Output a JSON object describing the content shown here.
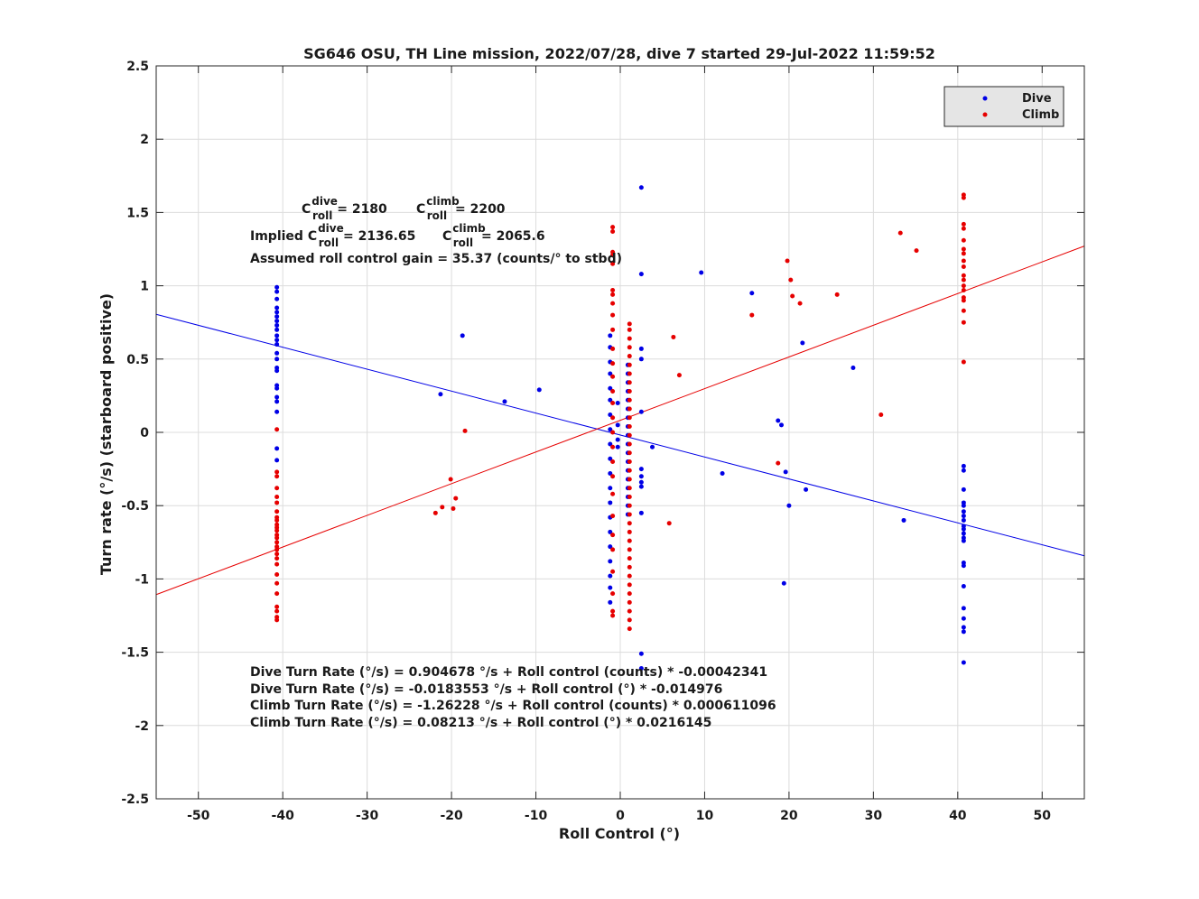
{
  "chart_data": {
    "type": "scatter",
    "title": "SG646 OSU, TH Line mission, 2022/07/28, dive 7 started 29-Jul-2022 11:59:52",
    "xlabel": "Roll Control (°)",
    "ylabel": "Turn rate (°/s) (starboard positive)",
    "xlim": [
      -55,
      55
    ],
    "ylim": [
      -2.5,
      2.5
    ],
    "xticks": [
      -50,
      -40,
      -30,
      -20,
      -10,
      0,
      10,
      20,
      30,
      40,
      50
    ],
    "yticks": [
      -2.5,
      -2,
      -1.5,
      -1,
      -0.5,
      0,
      0.5,
      1,
      1.5,
      2,
      2.5
    ],
    "xtick_labels": [
      "-50",
      "-40",
      "-30",
      "-20",
      "-10",
      "0",
      "10",
      "20",
      "30",
      "40",
      "50"
    ],
    "ytick_labels": [
      "-2.5",
      "-2",
      "-1.5",
      "-1",
      "-0.5",
      "0",
      "0.5",
      "1",
      "1.5",
      "2",
      "2.5"
    ],
    "grid": true,
    "legend_position": "top-right",
    "series": [
      {
        "name": "Dive",
        "color": "#0000e6",
        "points": [
          [
            -40.7,
            0.99
          ],
          [
            -40.7,
            0.96
          ],
          [
            -40.7,
            0.91
          ],
          [
            -40.7,
            0.85
          ],
          [
            -40.7,
            0.82
          ],
          [
            -40.7,
            0.79
          ],
          [
            -40.7,
            0.76
          ],
          [
            -40.7,
            0.73
          ],
          [
            -40.7,
            0.7
          ],
          [
            -40.7,
            0.66
          ],
          [
            -40.7,
            0.63
          ],
          [
            -40.7,
            0.6
          ],
          [
            -40.7,
            0.54
          ],
          [
            -40.7,
            0.5
          ],
          [
            -40.7,
            0.44
          ],
          [
            -40.7,
            0.42
          ],
          [
            -40.7,
            0.32
          ],
          [
            -40.7,
            0.3
          ],
          [
            -40.7,
            0.24
          ],
          [
            -40.7,
            0.21
          ],
          [
            -40.7,
            0.14
          ],
          [
            -40.7,
            -0.11
          ],
          [
            -40.7,
            -0.19
          ],
          [
            -21.3,
            0.26
          ],
          [
            -18.7,
            0.66
          ],
          [
            -13.7,
            0.21
          ],
          [
            -9.6,
            0.29
          ],
          [
            -1.2,
            0.66
          ],
          [
            -1.2,
            0.58
          ],
          [
            -1.2,
            0.48
          ],
          [
            -1.2,
            0.4
          ],
          [
            -1.2,
            0.3
          ],
          [
            -1.2,
            0.22
          ],
          [
            -1.2,
            0.12
          ],
          [
            -1.2,
            0.02
          ],
          [
            -1.2,
            -0.08
          ],
          [
            -1.2,
            -0.18
          ],
          [
            -1.2,
            -0.28
          ],
          [
            -1.2,
            -0.38
          ],
          [
            -1.2,
            -0.48
          ],
          [
            -1.2,
            -0.58
          ],
          [
            -1.2,
            -0.68
          ],
          [
            -1.2,
            -0.78
          ],
          [
            -1.2,
            -0.88
          ],
          [
            -1.2,
            -0.98
          ],
          [
            -1.2,
            -1.06
          ],
          [
            -1.2,
            -1.16
          ],
          [
            -0.3,
            0.2
          ],
          [
            -0.3,
            0.05
          ],
          [
            -0.3,
            -0.05
          ],
          [
            -0.3,
            -0.1
          ],
          [
            0.9,
            0.46
          ],
          [
            0.9,
            0.4
          ],
          [
            0.9,
            0.34
          ],
          [
            0.9,
            0.28
          ],
          [
            0.9,
            0.22
          ],
          [
            0.9,
            0.16
          ],
          [
            0.9,
            0.1
          ],
          [
            0.9,
            0.04
          ],
          [
            0.9,
            -0.02
          ],
          [
            0.9,
            -0.08
          ],
          [
            0.9,
            -0.14
          ],
          [
            0.9,
            -0.2
          ],
          [
            0.9,
            -0.26
          ],
          [
            0.9,
            -0.32
          ],
          [
            0.9,
            -0.38
          ],
          [
            0.9,
            -0.44
          ],
          [
            0.9,
            -0.5
          ],
          [
            0.9,
            -0.56
          ],
          [
            2.5,
            1.67
          ],
          [
            2.5,
            1.08
          ],
          [
            2.5,
            0.57
          ],
          [
            2.5,
            0.5
          ],
          [
            2.5,
            0.14
          ],
          [
            2.5,
            -0.25
          ],
          [
            2.5,
            -0.3
          ],
          [
            2.5,
            -0.34
          ],
          [
            2.5,
            -0.37
          ],
          [
            2.5,
            -0.55
          ],
          [
            2.5,
            -1.51
          ],
          [
            2.5,
            -1.61
          ],
          [
            3.8,
            -0.1
          ],
          [
            9.6,
            1.09
          ],
          [
            12.1,
            -0.28
          ],
          [
            15.6,
            0.95
          ],
          [
            18.7,
            0.08
          ],
          [
            19.1,
            0.05
          ],
          [
            19.4,
            -1.03
          ],
          [
            19.6,
            -0.27
          ],
          [
            20.0,
            -0.5
          ],
          [
            21.6,
            0.61
          ],
          [
            22.0,
            -0.39
          ],
          [
            27.6,
            0.44
          ],
          [
            33.6,
            -0.6
          ],
          [
            40.7,
            -0.23
          ],
          [
            40.7,
            -0.26
          ],
          [
            40.7,
            -0.39
          ],
          [
            40.7,
            -0.48
          ],
          [
            40.7,
            -0.5
          ],
          [
            40.7,
            -0.54
          ],
          [
            40.7,
            -0.57
          ],
          [
            40.7,
            -0.6
          ],
          [
            40.7,
            -0.64
          ],
          [
            40.7,
            -0.66
          ],
          [
            40.7,
            -0.69
          ],
          [
            40.7,
            -0.72
          ],
          [
            40.7,
            -0.74
          ],
          [
            40.7,
            -0.89
          ],
          [
            40.7,
            -0.91
          ],
          [
            40.7,
            -1.05
          ],
          [
            40.7,
            -1.2
          ],
          [
            40.7,
            -1.27
          ],
          [
            40.7,
            -1.33
          ],
          [
            40.7,
            -1.36
          ],
          [
            40.7,
            -1.57
          ]
        ]
      },
      {
        "name": "Climb",
        "color": "#e60000",
        "points": [
          [
            -40.7,
            0.02
          ],
          [
            -40.7,
            -0.27
          ],
          [
            -40.7,
            -0.3
          ],
          [
            -40.7,
            -0.38
          ],
          [
            -40.7,
            -0.44
          ],
          [
            -40.7,
            -0.48
          ],
          [
            -40.7,
            -0.54
          ],
          [
            -40.7,
            -0.58
          ],
          [
            -40.7,
            -0.6
          ],
          [
            -40.7,
            -0.63
          ],
          [
            -40.7,
            -0.65
          ],
          [
            -40.7,
            -0.67
          ],
          [
            -40.7,
            -0.7
          ],
          [
            -40.7,
            -0.72
          ],
          [
            -40.7,
            -0.75
          ],
          [
            -40.7,
            -0.78
          ],
          [
            -40.7,
            -0.8
          ],
          [
            -40.7,
            -0.83
          ],
          [
            -40.7,
            -0.86
          ],
          [
            -40.7,
            -0.9
          ],
          [
            -40.7,
            -0.97
          ],
          [
            -40.7,
            -1.03
          ],
          [
            -40.7,
            -1.1
          ],
          [
            -40.7,
            -1.19
          ],
          [
            -40.7,
            -1.22
          ],
          [
            -40.7,
            -1.26
          ],
          [
            -40.7,
            -1.28
          ],
          [
            -21.9,
            -0.55
          ],
          [
            -21.1,
            -0.51
          ],
          [
            -20.1,
            -0.32
          ],
          [
            -19.8,
            -0.52
          ],
          [
            -19.5,
            -0.45
          ],
          [
            -18.4,
            0.01
          ],
          [
            -0.9,
            1.4
          ],
          [
            -0.9,
            1.37
          ],
          [
            -0.9,
            1.23
          ],
          [
            -0.9,
            1.21
          ],
          [
            -0.9,
            1.15
          ],
          [
            -0.9,
            0.97
          ],
          [
            -0.9,
            0.94
          ],
          [
            -0.9,
            0.88
          ],
          [
            -0.9,
            0.8
          ],
          [
            -0.9,
            0.7
          ],
          [
            -0.9,
            0.57
          ],
          [
            -0.9,
            0.47
          ],
          [
            -0.9,
            0.38
          ],
          [
            -0.9,
            0.28
          ],
          [
            -0.9,
            0.2
          ],
          [
            -0.9,
            0.1
          ],
          [
            -0.9,
            0.0
          ],
          [
            -0.9,
            -0.1
          ],
          [
            -0.9,
            -0.2
          ],
          [
            -0.9,
            -0.3
          ],
          [
            -0.9,
            -0.42
          ],
          [
            -0.9,
            -0.57
          ],
          [
            -0.9,
            -0.7
          ],
          [
            -0.9,
            -0.8
          ],
          [
            -0.9,
            -0.95
          ],
          [
            -0.9,
            -1.1
          ],
          [
            -0.9,
            -1.22
          ],
          [
            -0.9,
            -1.25
          ],
          [
            1.1,
            0.74
          ],
          [
            1.1,
            0.7
          ],
          [
            1.1,
            0.64
          ],
          [
            1.1,
            0.58
          ],
          [
            1.1,
            0.52
          ],
          [
            1.1,
            0.46
          ],
          [
            1.1,
            0.4
          ],
          [
            1.1,
            0.34
          ],
          [
            1.1,
            0.28
          ],
          [
            1.1,
            0.22
          ],
          [
            1.1,
            0.16
          ],
          [
            1.1,
            0.1
          ],
          [
            1.1,
            0.04
          ],
          [
            1.1,
            -0.02
          ],
          [
            1.1,
            -0.08
          ],
          [
            1.1,
            -0.14
          ],
          [
            1.1,
            -0.2
          ],
          [
            1.1,
            -0.26
          ],
          [
            1.1,
            -0.32
          ],
          [
            1.1,
            -0.38
          ],
          [
            1.1,
            -0.44
          ],
          [
            1.1,
            -0.5
          ],
          [
            1.1,
            -0.56
          ],
          [
            1.1,
            -0.62
          ],
          [
            1.1,
            -0.68
          ],
          [
            1.1,
            -0.74
          ],
          [
            1.1,
            -0.8
          ],
          [
            1.1,
            -0.86
          ],
          [
            1.1,
            -0.92
          ],
          [
            1.1,
            -0.98
          ],
          [
            1.1,
            -1.04
          ],
          [
            1.1,
            -1.1
          ],
          [
            1.1,
            -1.16
          ],
          [
            1.1,
            -1.22
          ],
          [
            1.1,
            -1.28
          ],
          [
            1.1,
            -1.34
          ],
          [
            5.8,
            -0.62
          ],
          [
            6.3,
            0.65
          ],
          [
            7.0,
            0.39
          ],
          [
            15.6,
            0.8
          ],
          [
            18.7,
            -0.21
          ],
          [
            19.8,
            1.17
          ],
          [
            20.2,
            1.04
          ],
          [
            20.4,
            0.93
          ],
          [
            21.3,
            0.88
          ],
          [
            25.7,
            0.94
          ],
          [
            30.9,
            0.12
          ],
          [
            33.2,
            1.36
          ],
          [
            35.1,
            1.24
          ],
          [
            40.7,
            1.62
          ],
          [
            40.7,
            1.6
          ],
          [
            40.7,
            1.42
          ],
          [
            40.7,
            1.39
          ],
          [
            40.7,
            1.31
          ],
          [
            40.7,
            1.25
          ],
          [
            40.7,
            1.22
          ],
          [
            40.7,
            1.17
          ],
          [
            40.7,
            1.13
          ],
          [
            40.7,
            1.07
          ],
          [
            40.7,
            1.04
          ],
          [
            40.7,
            1.0
          ],
          [
            40.7,
            0.97
          ],
          [
            40.7,
            0.92
          ],
          [
            40.7,
            0.9
          ],
          [
            40.7,
            0.83
          ],
          [
            40.7,
            0.75
          ],
          [
            40.7,
            0.48
          ]
        ]
      }
    ],
    "fit_lines": [
      {
        "series": "Dive",
        "intercept": -0.0183553,
        "slope": -0.014976,
        "color": "#0000e6"
      },
      {
        "series": "Climb",
        "intercept": 0.08213,
        "slope": 0.0216145,
        "color": "#e60000"
      }
    ],
    "annotations": {
      "c_dive": {
        "base": "C",
        "sup": "dive",
        "sub": "roll",
        "rest": " = 2180"
      },
      "c_climb": {
        "base": "C",
        "sup": "climb",
        "sub": "roll",
        "rest": " = 2200"
      },
      "implied_prefix": "Implied ",
      "implied_dive": {
        "base": "C",
        "sup": "dive",
        "sub": "roll",
        "rest": " = 2136.65"
      },
      "implied_climb": {
        "base": "C",
        "sup": "climb",
        "sub": "roll",
        "rest": " = 2065.6"
      },
      "gain": "Assumed roll control gain = 35.37 (counts/° to stbd)",
      "fits": [
        "Dive Turn Rate (°/s) = 0.904678  °/s + Roll control (counts) * -0.00042341",
        "Dive Turn Rate (°/s) = -0.0183553 °/s + Roll control (°) * -0.014976",
        "Climb Turn Rate (°/s) = -1.26228 °/s + Roll control (counts) * 0.000611096",
        "Climb Turn Rate (°/s) = 0.08213  °/s + Roll control (°) * 0.0216145"
      ]
    }
  }
}
